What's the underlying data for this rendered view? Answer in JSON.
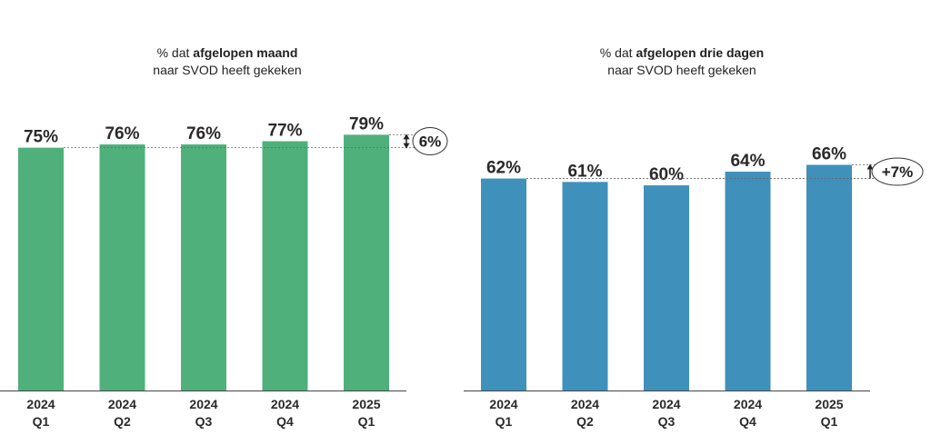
{
  "chart_data": [
    {
      "type": "bar",
      "title_prefix": "% dat ",
      "title_bold": "afgelopen maand",
      "subtitle": "naar SVOD heeft gekeken",
      "categories": [
        [
          "2024",
          "Q1"
        ],
        [
          "2024",
          "Q2"
        ],
        [
          "2024",
          "Q3"
        ],
        [
          "2024",
          "Q4"
        ],
        [
          "2025",
          "Q1"
        ]
      ],
      "values": [
        75,
        76,
        76,
        77,
        79
      ],
      "value_labels": [
        "75%",
        "76%",
        "76%",
        "77%",
        "79%"
      ],
      "change_label": "6%",
      "change_arrow": "double",
      "color": "#4fb07c",
      "ylim": [
        0,
        100
      ],
      "grid": false
    },
    {
      "type": "bar",
      "title_prefix": "% dat ",
      "title_bold": "afgelopen drie dagen",
      "subtitle": "naar SVOD heeft gekeken",
      "categories": [
        [
          "2024",
          "Q1"
        ],
        [
          "2024",
          "Q2"
        ],
        [
          "2024",
          "Q3"
        ],
        [
          "2024",
          "Q4"
        ],
        [
          "2025",
          "Q1"
        ]
      ],
      "values": [
        62,
        61,
        60,
        64,
        66
      ],
      "value_labels": [
        "62%",
        "61%",
        "60%",
        "64%",
        "66%"
      ],
      "change_label": "+7%",
      "change_arrow": "up",
      "color": "#4090bc",
      "ylim": [
        0,
        100
      ],
      "grid": false
    }
  ]
}
